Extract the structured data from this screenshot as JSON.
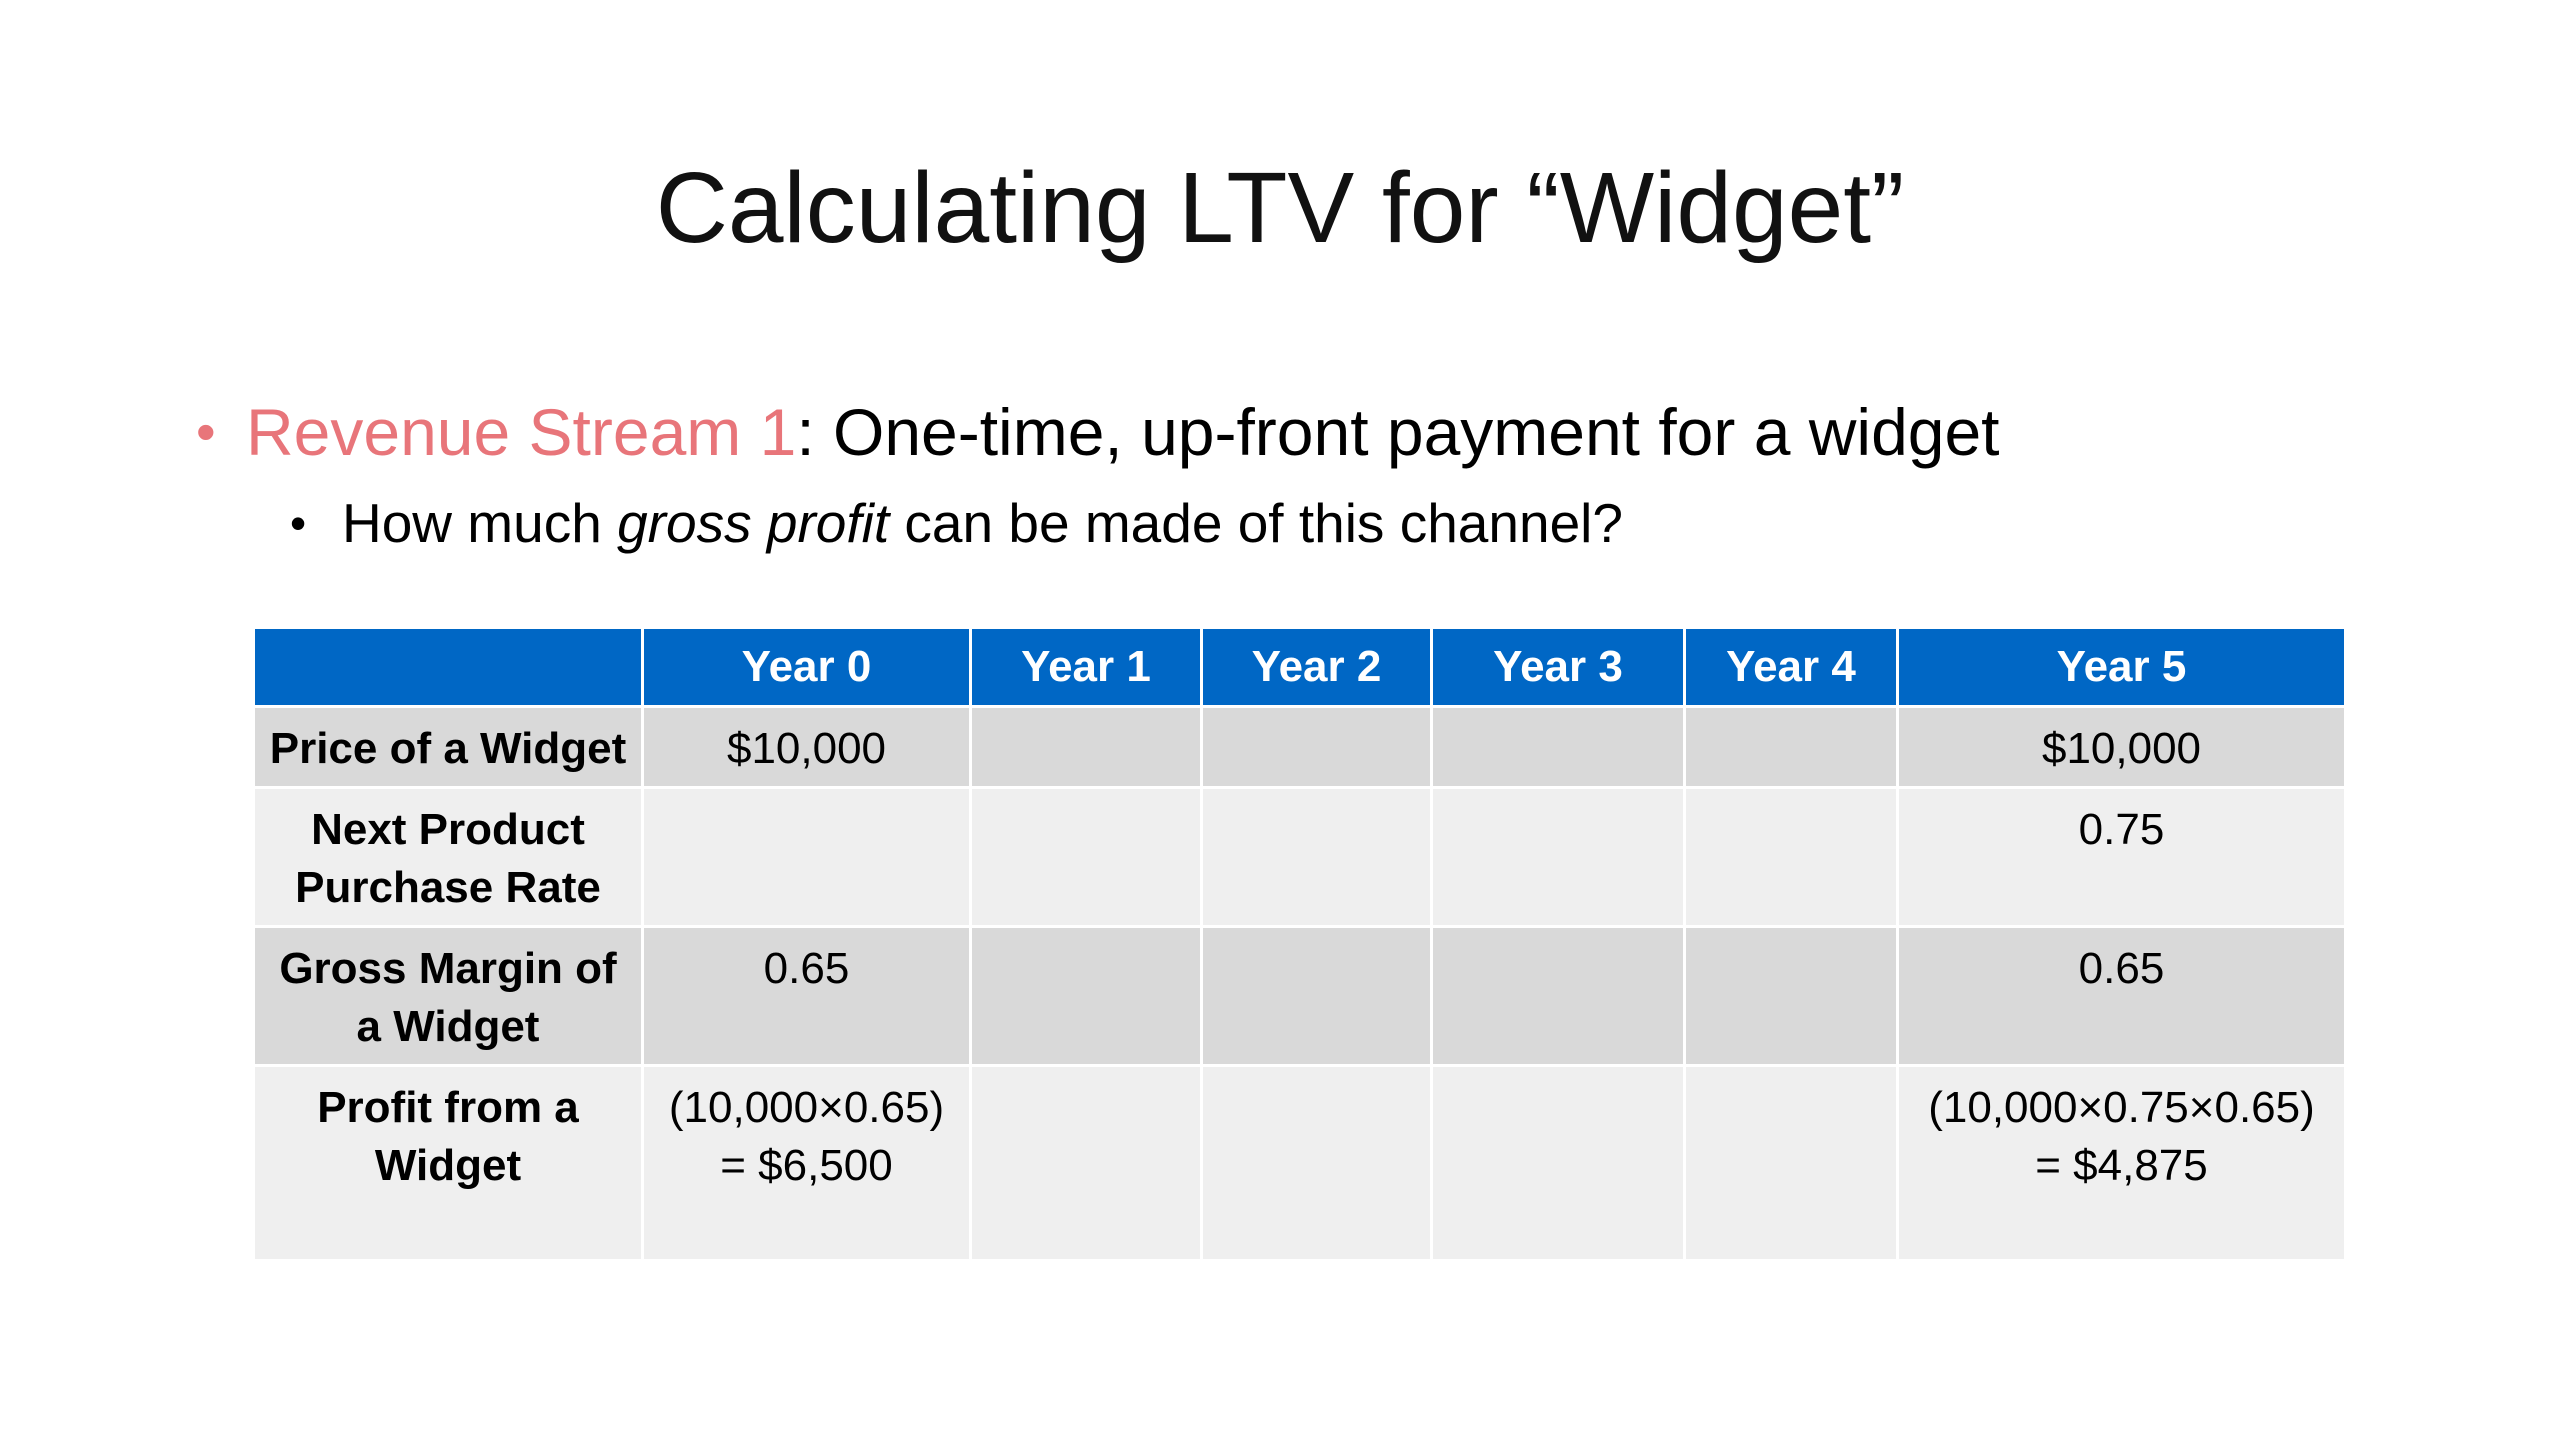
{
  "slide": {
    "title": "Calculating LTV for “Widget”",
    "bullet1": {
      "highlight": "Revenue Stream 1",
      "rest": ": One-time, up-front payment for a widget"
    },
    "bullet2": {
      "before": "How much ",
      "emphasis": "gross profit",
      "after": " can be made of this channel?"
    }
  },
  "colors": {
    "accent": "#e8757a",
    "header_fill": "#0067c5",
    "row_dark": "#d9d9d9",
    "row_light": "#efefef"
  },
  "table": {
    "headers": [
      "",
      "Year 0",
      "Year 1",
      "Year 2",
      "Year 3",
      "Year 4",
      "Year 5"
    ],
    "rows": [
      {
        "label": [
          "Price of a Widget"
        ],
        "cells": [
          [
            "$10,000"
          ],
          [],
          [],
          [],
          [],
          [
            "$10,000"
          ]
        ]
      },
      {
        "label": [
          "Next Product",
          "Purchase Rate"
        ],
        "cells": [
          [],
          [],
          [],
          [],
          [],
          [
            "0.75"
          ]
        ]
      },
      {
        "label": [
          "Gross Margin of",
          "a Widget"
        ],
        "cells": [
          [
            "0.65"
          ],
          [],
          [],
          [],
          [],
          [
            "0.65"
          ]
        ]
      },
      {
        "label": [
          "Profit from a",
          "Widget"
        ],
        "cells": [
          [
            "(10,000×0.65)",
            "= $6,500"
          ],
          [],
          [],
          [],
          [],
          [
            "(10,000×0.75×0.65)",
            "= $4,875"
          ]
        ]
      }
    ]
  }
}
